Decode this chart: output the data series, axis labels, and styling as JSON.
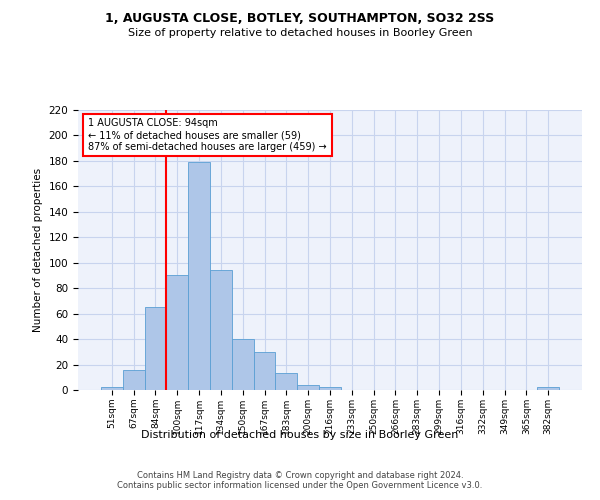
{
  "title1": "1, AUGUSTA CLOSE, BOTLEY, SOUTHAMPTON, SO32 2SS",
  "title2": "Size of property relative to detached houses in Boorley Green",
  "xlabel": "Distribution of detached houses by size in Boorley Green",
  "ylabel": "Number of detached properties",
  "bins": [
    "51sqm",
    "67sqm",
    "84sqm",
    "100sqm",
    "117sqm",
    "134sqm",
    "150sqm",
    "167sqm",
    "183sqm",
    "200sqm",
    "216sqm",
    "233sqm",
    "250sqm",
    "266sqm",
    "283sqm",
    "299sqm",
    "316sqm",
    "332sqm",
    "349sqm",
    "365sqm",
    "382sqm"
  ],
  "bar_values": [
    2,
    16,
    65,
    90,
    179,
    94,
    40,
    30,
    13,
    4,
    2,
    0,
    0,
    0,
    0,
    0,
    0,
    0,
    0,
    0,
    2
  ],
  "bar_color": "#aec6e8",
  "bar_edge_color": "#5a9fd4",
  "vline_x_index": 2.5,
  "vline_color": "red",
  "annotation_text": "1 AUGUSTA CLOSE: 94sqm\n← 11% of detached houses are smaller (59)\n87% of semi-detached houses are larger (459) →",
  "annotation_box_color": "white",
  "annotation_box_edge": "red",
  "ylim": [
    0,
    220
  ],
  "yticks": [
    0,
    20,
    40,
    60,
    80,
    100,
    120,
    140,
    160,
    180,
    200,
    220
  ],
  "footer": "Contains HM Land Registry data © Crown copyright and database right 2024.\nContains public sector information licensed under the Open Government Licence v3.0.",
  "bg_color": "#eef2fb",
  "grid_color": "#c8d4ee"
}
